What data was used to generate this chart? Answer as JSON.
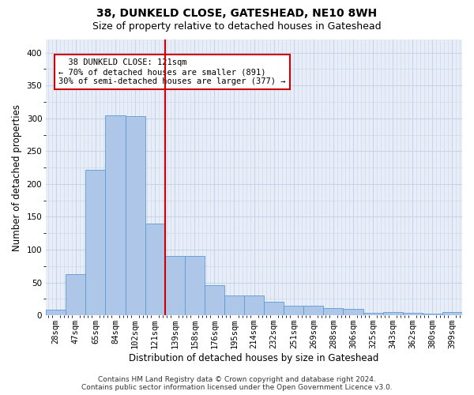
{
  "title1": "38, DUNKELD CLOSE, GATESHEAD, NE10 8WH",
  "title2": "Size of property relative to detached houses in Gateshead",
  "xlabel": "Distribution of detached houses by size in Gateshead",
  "ylabel": "Number of detached properties",
  "bin_labels": [
    "28sqm",
    "47sqm",
    "65sqm",
    "84sqm",
    "102sqm",
    "121sqm",
    "139sqm",
    "158sqm",
    "176sqm",
    "195sqm",
    "214sqm",
    "232sqm",
    "251sqm",
    "269sqm",
    "288sqm",
    "306sqm",
    "325sqm",
    "343sqm",
    "362sqm",
    "380sqm",
    "399sqm"
  ],
  "bar_heights": [
    8,
    63,
    222,
    305,
    303,
    140,
    90,
    90,
    46,
    30,
    30,
    20,
    15,
    14,
    11,
    10,
    4,
    5,
    4,
    3,
    5
  ],
  "bar_color": "#aec6e8",
  "bar_edge_color": "#5b9bd5",
  "vline_x": 5.5,
  "vline_color": "#cc0000",
  "annotation_text": "  38 DUNKELD CLOSE: 121sqm  \n← 70% of detached houses are smaller (891)\n30% of semi-detached houses are larger (377) →",
  "annotation_box_color": "#ffffff",
  "annotation_box_edge_color": "#cc0000",
  "ylim": [
    0,
    420
  ],
  "yticks": [
    0,
    50,
    100,
    150,
    200,
    250,
    300,
    350,
    400
  ],
  "grid_color": "#c8d4e8",
  "background_color": "#e8eef8",
  "footer_text": "Contains HM Land Registry data © Crown copyright and database right 2024.\nContains public sector information licensed under the Open Government Licence v3.0.",
  "title1_fontsize": 10,
  "title2_fontsize": 9,
  "xlabel_fontsize": 8.5,
  "ylabel_fontsize": 8.5,
  "tick_fontsize": 7.5,
  "annotation_fontsize": 7.5,
  "footer_fontsize": 6.5
}
